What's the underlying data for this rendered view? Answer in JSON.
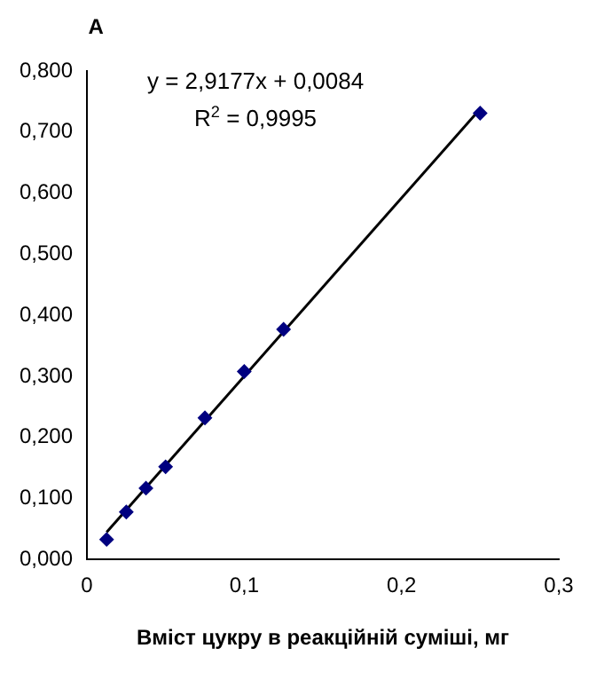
{
  "chart_data": {
    "type": "scatter",
    "ylabel": "A",
    "xlabel": "Вміст цукру в реакційній суміші, мг",
    "annotations": [
      "y = 2,9177x + 0,0084",
      "R$^{2}$ = 0,9995"
    ],
    "x": [
      0.0125,
      0.025,
      0.0375,
      0.05,
      0.075,
      0.1,
      0.125,
      0.25
    ],
    "series": [
      {
        "type": "scatter",
        "color": "#000080",
        "marker": "diamond",
        "values": [
          0.033,
          0.078,
          0.117,
          0.152,
          0.232,
          0.308,
          0.377,
          0.731
        ]
      },
      {
        "type": "line",
        "color": "#000000",
        "x": [
          0.0125,
          0.25
        ],
        "values": [
          0.045,
          0.738
        ]
      }
    ],
    "xlim": [
      0,
      0.3
    ],
    "xticks": [
      {
        "value": 0,
        "label": "0"
      },
      {
        "value": 0.1,
        "label": "0,1"
      },
      {
        "value": 0.2,
        "label": "0,2"
      },
      {
        "value": 0.3,
        "label": "0,3"
      }
    ],
    "ylim": [
      0,
      0.8
    ],
    "yticks": [
      {
        "value": 0,
        "label": "0,000"
      },
      {
        "value": 0.1,
        "label": "0,100"
      },
      {
        "value": 0.2,
        "label": "0,200"
      },
      {
        "value": 0.3,
        "label": "0,300"
      },
      {
        "value": 0.4,
        "label": "0,400"
      },
      {
        "value": 0.5,
        "label": "0,500"
      },
      {
        "value": 0.6,
        "label": "0,600"
      },
      {
        "value": 0.7,
        "label": "0,700"
      },
      {
        "value": 0.8,
        "label": "0,800"
      }
    ],
    "grid": false,
    "legend": false
  }
}
